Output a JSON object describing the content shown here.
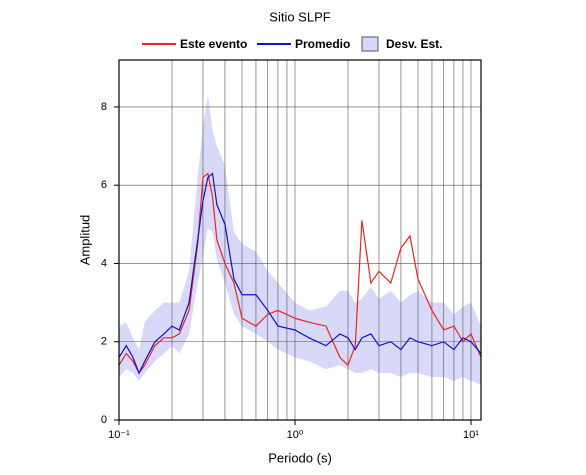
{
  "chart_data": {
    "type": "line",
    "title": "Sitio SLPF",
    "xlabel": "Periodo (s)",
    "ylabel": "Amplitud",
    "xscale": "log",
    "xlim": [
      0.1,
      11.4
    ],
    "ylim": [
      0,
      9.2
    ],
    "xticks": [
      {
        "value": 0.1,
        "label": "10⁻¹"
      },
      {
        "value": 1,
        "label": "10⁰"
      },
      {
        "value": 10,
        "label": "10¹"
      }
    ],
    "xminor": [
      0.2,
      0.3,
      0.4,
      0.5,
      0.6,
      0.7,
      0.8,
      0.9,
      2,
      3,
      4,
      5,
      6,
      7,
      8,
      9
    ],
    "yticks": [
      0,
      2,
      4,
      6,
      8
    ],
    "grid": true,
    "x": [
      0.1,
      0.11,
      0.12,
      0.13,
      0.14,
      0.16,
      0.18,
      0.2,
      0.22,
      0.25,
      0.28,
      0.3,
      0.32,
      0.34,
      0.36,
      0.4,
      0.45,
      0.5,
      0.6,
      0.7,
      0.8,
      1.0,
      1.2,
      1.5,
      1.8,
      2.0,
      2.2,
      2.4,
      2.7,
      3.0,
      3.5,
      4.0,
      4.5,
      5.0,
      6.0,
      7.0,
      8.0,
      9.0,
      10,
      11.4
    ],
    "series": [
      {
        "name": "Este evento",
        "color": "#ee2222",
        "values": [
          1.4,
          1.7,
          1.5,
          1.2,
          1.4,
          1.9,
          2.1,
          2.1,
          2.2,
          2.8,
          4.5,
          6.2,
          6.3,
          5.7,
          4.6,
          4.0,
          3.5,
          2.6,
          2.4,
          2.7,
          2.8,
          2.6,
          2.5,
          2.4,
          1.6,
          1.4,
          1.9,
          5.1,
          3.5,
          3.8,
          3.5,
          4.4,
          4.7,
          3.6,
          2.8,
          2.3,
          2.4,
          2.0,
          2.2,
          1.6
        ]
      },
      {
        "name": "Promedio",
        "color": "#1111cc",
        "values": [
          1.6,
          1.9,
          1.6,
          1.2,
          1.5,
          2.0,
          2.2,
          2.4,
          2.3,
          3.0,
          4.6,
          5.6,
          6.2,
          6.3,
          5.5,
          5.0,
          3.6,
          3.2,
          3.2,
          2.8,
          2.4,
          2.3,
          2.1,
          1.9,
          2.2,
          2.1,
          1.8,
          2.1,
          2.2,
          1.9,
          2.0,
          1.8,
          2.1,
          2.0,
          1.9,
          2.0,
          1.8,
          2.1,
          2.0,
          1.7
        ]
      },
      {
        "name": "Desv. Est.",
        "color": "#d8d8f8",
        "upper": [
          2.4,
          2.5,
          2.1,
          1.8,
          2.5,
          2.8,
          3.0,
          3.0,
          3.0,
          3.8,
          6.2,
          7.5,
          8.3,
          7.4,
          7.0,
          6.5,
          4.8,
          4.5,
          4.3,
          3.8,
          3.5,
          3.0,
          2.8,
          2.9,
          3.3,
          3.3,
          3.0,
          3.1,
          3.4,
          3.1,
          3.3,
          3.0,
          3.2,
          3.3,
          3.0,
          3.0,
          2.7,
          2.9,
          3.0,
          2.4
        ],
        "lower": [
          1.1,
          1.3,
          1.2,
          1.0,
          1.2,
          1.5,
          1.7,
          1.9,
          1.7,
          2.2,
          3.5,
          4.2,
          4.9,
          4.8,
          4.1,
          3.5,
          2.7,
          2.4,
          2.2,
          2.0,
          1.8,
          1.6,
          1.5,
          1.3,
          1.4,
          1.3,
          1.2,
          1.2,
          1.3,
          1.2,
          1.2,
          1.1,
          1.2,
          1.2,
          1.1,
          1.1,
          1.0,
          1.1,
          1.0,
          0.9
        ]
      }
    ]
  }
}
